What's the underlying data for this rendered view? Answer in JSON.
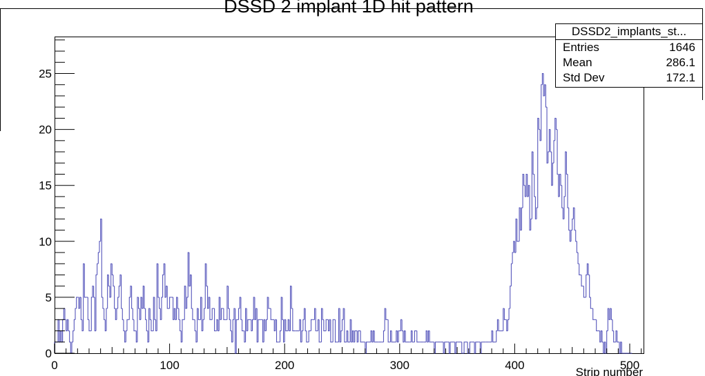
{
  "chart_data": {
    "type": "bar",
    "title": "DSSD 2 implant 1D hit pattern",
    "xlabel": "Strip number",
    "ylabel": "",
    "xlim": [
      0,
      512
    ],
    "ylim": [
      0,
      28.3
    ],
    "x_ticks": [
      0,
      100,
      200,
      300,
      400,
      500
    ],
    "y_ticks": [
      0,
      5,
      10,
      15,
      20,
      25
    ],
    "grid": false,
    "line_color": "#5555bb",
    "bin_width": 1,
    "values": [
      1,
      1,
      1,
      3,
      1,
      2,
      1,
      3,
      4,
      3,
      2,
      3,
      2,
      1,
      0,
      1,
      2,
      3,
      4,
      5,
      5,
      4,
      5,
      3,
      2,
      8,
      5,
      5,
      5,
      3,
      2,
      2,
      5,
      6,
      5,
      2,
      7,
      8,
      9,
      10,
      12,
      5,
      4,
      3,
      2,
      4,
      7,
      6,
      5,
      8,
      7,
      6,
      4,
      3,
      4,
      5,
      6,
      7,
      4,
      3,
      2,
      1,
      2,
      3,
      3,
      5,
      6,
      4,
      3,
      2,
      2,
      1,
      5,
      4,
      3,
      5,
      4,
      6,
      4,
      3,
      2,
      1,
      4,
      3,
      2,
      2,
      5,
      3,
      2,
      8,
      5,
      4,
      3,
      5,
      7,
      8,
      5,
      6,
      4,
      4,
      5,
      5,
      5,
      3,
      4,
      3,
      5,
      4,
      3,
      2,
      1,
      3,
      3,
      6,
      4,
      5,
      9,
      6,
      7,
      4,
      3,
      3,
      2,
      1,
      4,
      3,
      3,
      5,
      2,
      3,
      4,
      8,
      6,
      4,
      5,
      3,
      3,
      4,
      4,
      2,
      2,
      3,
      2,
      5,
      3,
      4,
      4,
      3,
      3,
      3,
      6,
      4,
      3,
      2,
      1,
      3,
      4,
      0,
      3,
      3,
      4,
      5,
      3,
      2,
      2,
      1,
      4,
      2,
      3,
      3,
      3,
      2,
      3,
      5,
      3,
      4,
      1,
      3,
      3,
      3,
      3,
      1,
      3,
      2,
      3,
      5,
      4,
      4,
      3,
      3,
      3,
      2,
      3,
      1,
      1,
      1,
      2,
      5,
      3,
      1,
      3,
      2,
      2,
      3,
      2,
      6,
      4,
      2,
      2,
      2,
      2,
      2,
      2,
      3,
      1,
      2,
      3,
      4,
      2,
      1,
      1,
      2,
      2,
      3,
      3,
      3,
      4,
      2,
      2,
      3,
      1,
      1,
      4,
      3,
      2,
      2,
      3,
      3,
      2,
      3,
      1,
      1,
      3,
      3,
      1,
      1,
      1,
      4,
      1,
      2,
      3,
      4,
      1,
      1,
      2,
      1,
      1,
      3,
      1,
      2,
      1,
      2,
      2,
      1,
      2,
      2,
      1,
      1,
      1,
      1,
      0,
      1,
      1,
      1,
      1,
      2,
      1,
      2,
      1,
      1,
      1,
      1,
      1,
      1,
      1,
      1,
      2,
      4,
      3,
      3,
      1,
      1,
      2,
      1,
      1,
      1,
      1,
      2,
      1,
      2,
      2,
      3,
      2,
      1,
      2,
      1,
      1,
      1,
      1,
      1,
      2,
      1,
      1,
      2,
      2,
      1,
      1,
      1,
      1,
      1,
      1,
      1,
      1,
      2,
      1,
      2,
      1,
      1,
      1,
      1,
      0,
      1,
      1,
      1,
      1,
      1,
      1,
      1,
      0,
      1,
      1,
      1,
      1,
      0,
      1,
      1,
      1,
      1,
      0,
      1,
      1,
      1,
      1,
      1,
      0,
      0,
      1,
      1,
      1,
      0,
      0,
      1,
      1,
      1,
      1,
      0,
      1,
      1,
      1,
      1,
      0,
      1,
      1,
      1,
      1,
      1,
      1,
      1,
      1,
      1,
      2,
      1,
      1,
      1,
      2,
      3,
      2,
      2,
      2,
      2,
      4,
      3,
      3,
      2,
      3,
      4,
      6,
      8,
      9,
      10,
      9,
      12,
      10,
      10,
      13,
      11,
      13,
      16,
      15,
      14,
      16,
      14,
      15,
      11,
      12,
      18,
      16,
      14,
      12,
      13,
      21,
      20,
      19,
      24,
      25,
      23,
      24,
      22,
      17,
      18,
      20,
      18,
      15,
      17,
      19,
      21,
      20,
      16,
      14,
      16,
      15,
      13,
      12,
      14,
      18,
      16,
      13,
      11,
      10,
      11,
      12,
      13,
      11,
      10,
      9,
      8,
      7,
      7,
      6,
      6,
      5,
      5,
      7,
      8,
      7,
      5,
      4,
      4,
      3,
      3,
      3,
      2,
      2,
      2,
      1,
      2,
      1,
      0,
      1,
      0,
      2,
      4,
      3,
      4,
      3,
      2,
      1,
      1,
      2,
      1,
      1,
      0,
      1,
      0,
      0,
      0,
      0,
      0,
      0,
      0,
      0,
      0
    ]
  },
  "stats": {
    "name": "DSSD2_implants_st...",
    "entries_label": "Entries",
    "entries_value": "1646",
    "mean_label": "Mean",
    "mean_value": "286.1",
    "stddev_label": "Std Dev",
    "stddev_value": "172.1"
  }
}
